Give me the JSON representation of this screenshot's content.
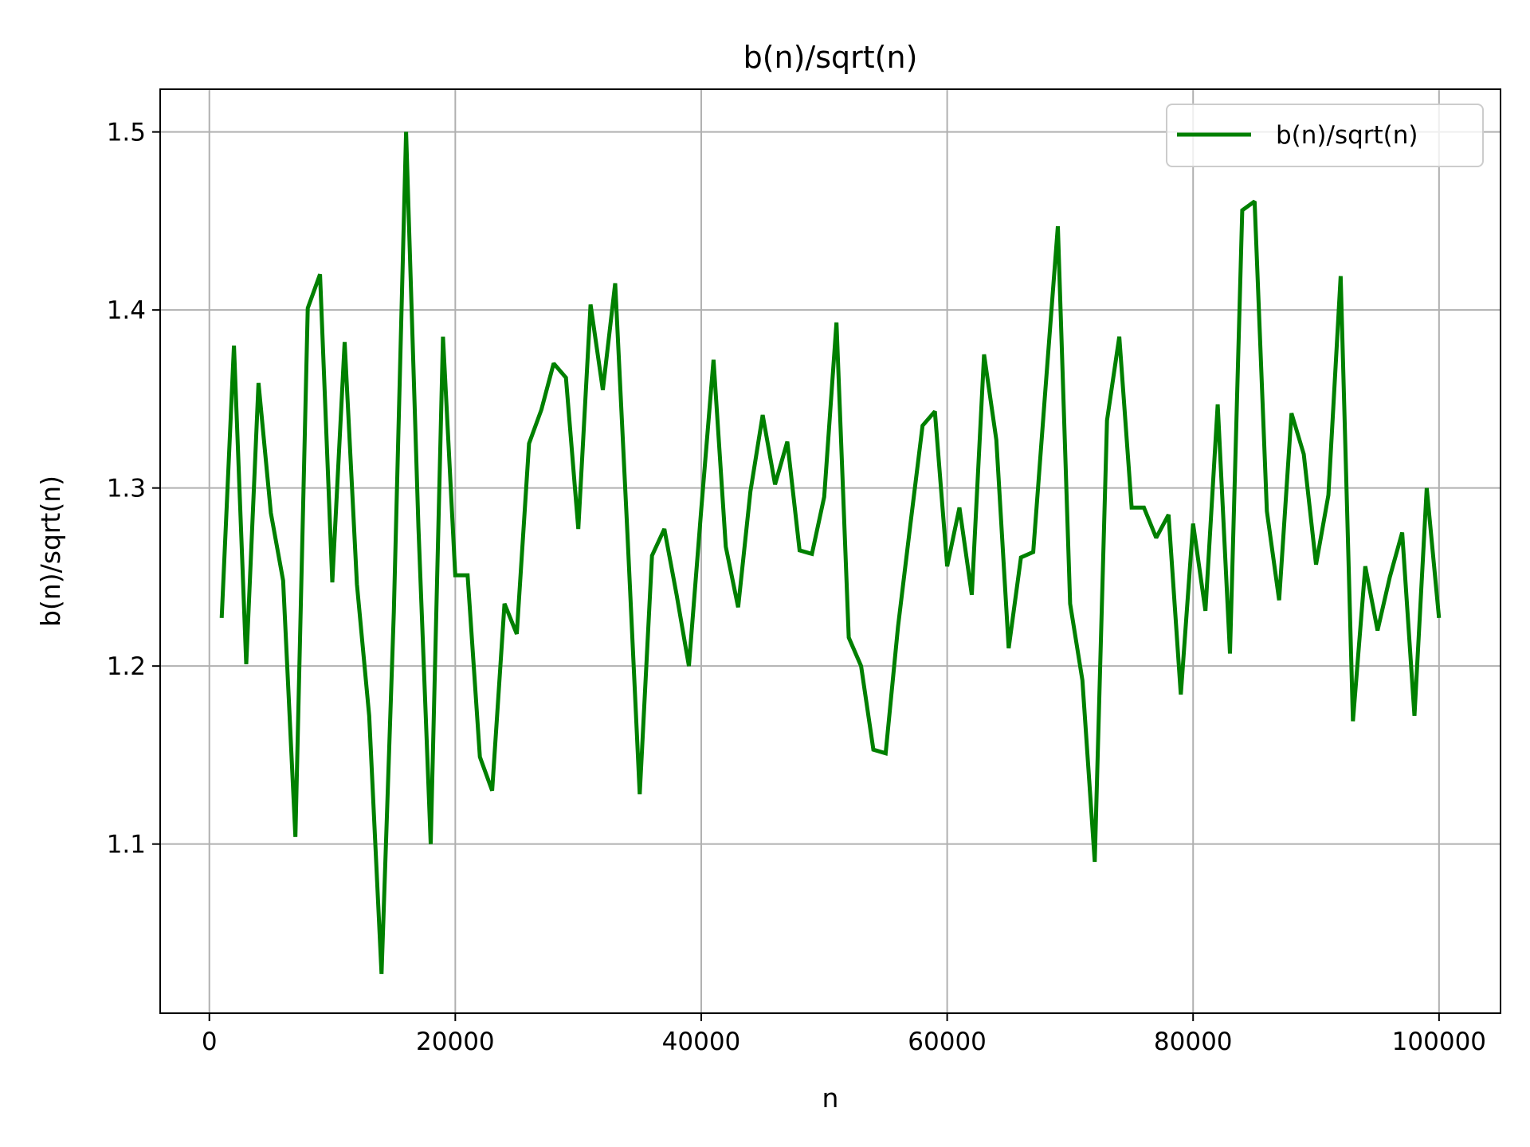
{
  "chart_data": {
    "type": "line",
    "title": "b(n)/sqrt(n)",
    "xlabel": "n",
    "ylabel": "b(n)/sqrt(n)",
    "xlim": [
      -4000,
      105000
    ],
    "ylim": [
      1.005,
      1.524
    ],
    "x_ticks": [
      0,
      20000,
      40000,
      60000,
      80000,
      100000
    ],
    "x_tick_labels": [
      "0",
      "20000",
      "40000",
      "60000",
      "80000",
      "100000"
    ],
    "y_ticks": [
      1.1,
      1.2,
      1.3,
      1.4,
      1.5
    ],
    "y_tick_labels": [
      "1.1",
      "1.2",
      "1.3",
      "1.4",
      "1.5"
    ],
    "grid": true,
    "legend_position": "top-right",
    "series": [
      {
        "name": "b(n)/sqrt(n)",
        "color": "#008000",
        "x": [
          1000,
          2000,
          3000,
          4000,
          5000,
          6000,
          7000,
          8000,
          9000,
          10000,
          11000,
          12000,
          13000,
          14000,
          15000,
          16000,
          17000,
          18000,
          19000,
          20000,
          21000,
          22000,
          23000,
          24000,
          25000,
          26000,
          27000,
          28000,
          29000,
          30000,
          31000,
          32000,
          33000,
          34000,
          35000,
          36000,
          37000,
          38000,
          39000,
          40000,
          41000,
          42000,
          43000,
          44000,
          45000,
          46000,
          47000,
          48000,
          49000,
          50000,
          51000,
          52000,
          53000,
          54000,
          55000,
          56000,
          57000,
          58000,
          59000,
          60000,
          61000,
          62000,
          63000,
          64000,
          65000,
          66000,
          67000,
          68000,
          69000,
          70000,
          71000,
          72000,
          73000,
          74000,
          75000,
          76000,
          77000,
          78000,
          79000,
          80000,
          81000,
          82000,
          83000,
          84000,
          85000,
          86000,
          87000,
          88000,
          89000,
          90000,
          91000,
          92000,
          93000,
          94000,
          95000,
          96000,
          97000,
          98000,
          99000,
          100000
        ],
        "values": [
          1.227,
          1.38,
          1.201,
          1.359,
          1.286,
          1.248,
          1.104,
          1.401,
          1.42,
          1.247,
          1.382,
          1.246,
          1.172,
          1.027,
          1.23,
          1.5,
          1.278,
          1.1,
          1.385,
          1.251,
          1.251,
          1.149,
          1.13,
          1.235,
          1.218,
          1.325,
          1.344,
          1.37,
          1.362,
          1.277,
          1.403,
          1.355,
          1.415,
          1.274,
          1.128,
          1.262,
          1.277,
          1.24,
          1.2,
          1.288,
          1.372,
          1.267,
          1.233,
          1.298,
          1.341,
          1.302,
          1.326,
          1.265,
          1.263,
          1.295,
          1.393,
          1.216,
          1.2,
          1.153,
          1.151,
          1.222,
          1.279,
          1.335,
          1.343,
          1.256,
          1.289,
          1.24,
          1.375,
          1.327,
          1.21,
          1.261,
          1.264,
          1.356,
          1.447,
          1.235,
          1.192,
          1.09,
          1.338,
          1.385,
          1.289,
          1.289,
          1.272,
          1.285,
          1.184,
          1.28,
          1.231,
          1.347,
          1.207,
          1.456,
          1.461,
          1.287,
          1.237,
          1.342,
          1.319,
          1.257,
          1.296,
          1.419,
          1.169,
          1.256,
          1.22,
          1.25,
          1.275,
          1.172,
          1.3,
          1.227
        ]
      }
    ]
  }
}
